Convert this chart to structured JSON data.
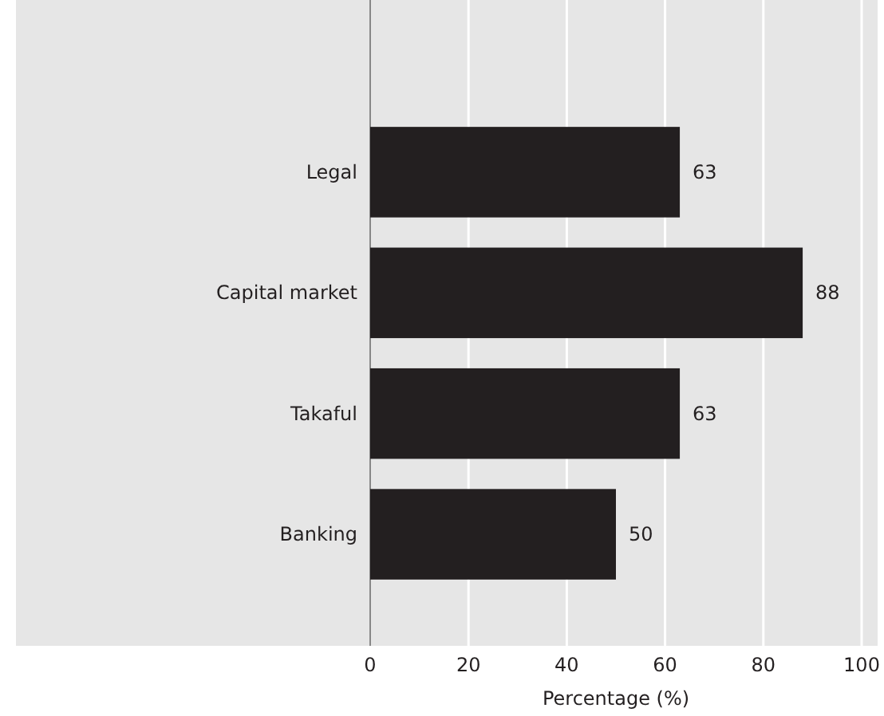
{
  "chart_data": {
    "type": "bar",
    "orientation": "horizontal",
    "categories": [
      "Legal",
      "Capital market",
      "Takaful",
      "Banking"
    ],
    "values": [
      63,
      88,
      63,
      50
    ],
    "color": "#231f20",
    "xlim": [
      0,
      100
    ],
    "xticks": [
      0,
      20,
      40,
      60,
      80,
      100
    ],
    "xlabel": "Percentage (%)",
    "grid": "x",
    "data_labels": true
  }
}
